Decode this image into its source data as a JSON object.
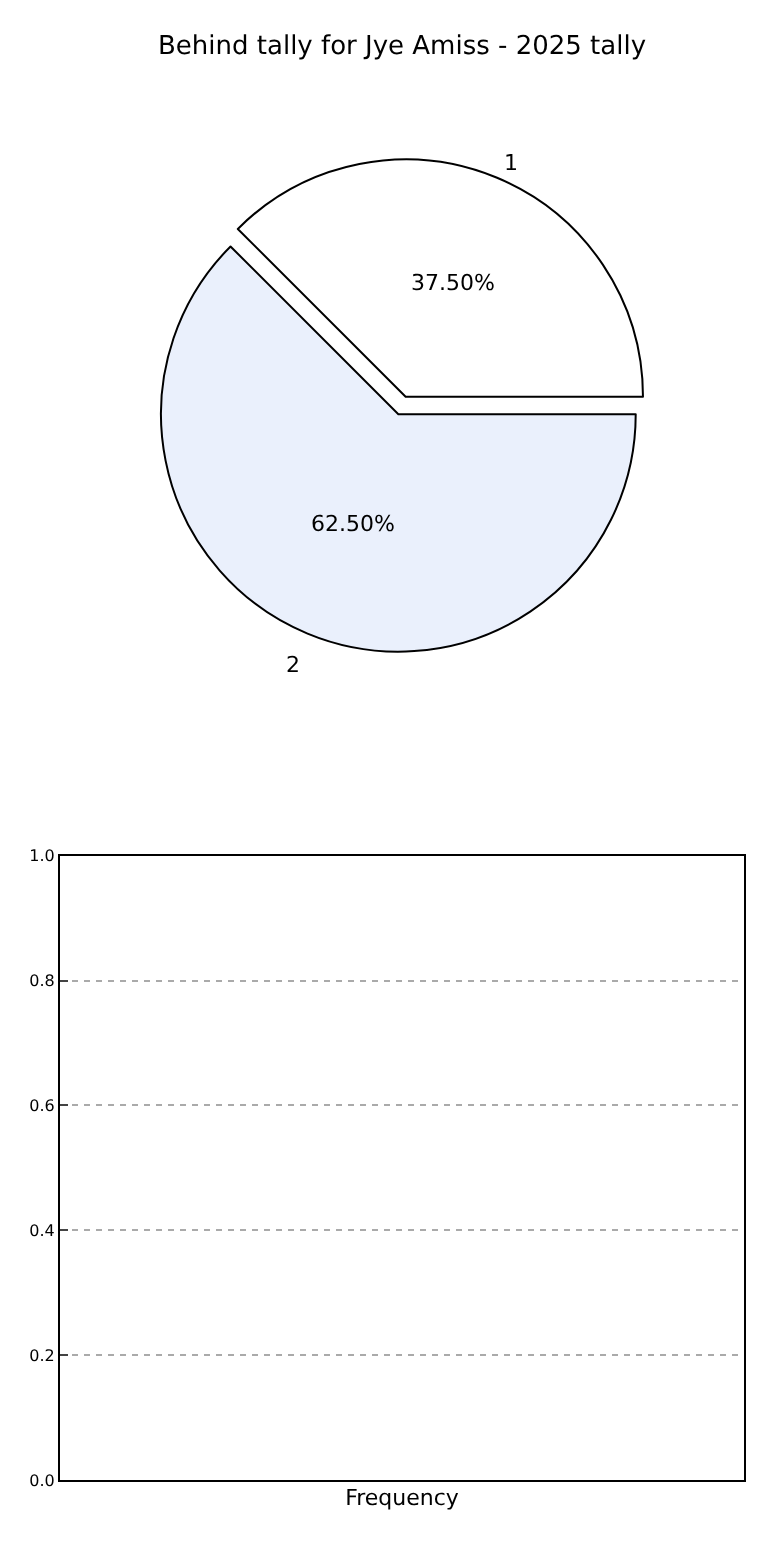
{
  "chart_data": [
    {
      "type": "pie",
      "title": "Behind tally for Jye Amiss - 2025 tally",
      "categories": [
        "1",
        "2"
      ],
      "values": [
        37.5,
        62.5
      ],
      "colors": [
        "#ffffff",
        "#eaf0fc"
      ],
      "value_labels": [
        "37.50%",
        "62.50%"
      ]
    },
    {
      "type": "bar",
      "xlabel": "Frequency",
      "categories": [
        null
      ],
      "values": [
        null
      ],
      "ylim": [
        0,
        1
      ],
      "yticks": [
        {
          "value": 0,
          "label": "0.0"
        },
        {
          "value": 0.2,
          "label": "0.2"
        },
        {
          "value": 0.4,
          "label": "0.4"
        },
        {
          "value": 0.6,
          "label": "0.6"
        },
        {
          "value": 0.8,
          "label": "0.8"
        },
        {
          "value": 1,
          "label": "1.0"
        }
      ],
      "grid": "y"
    }
  ]
}
